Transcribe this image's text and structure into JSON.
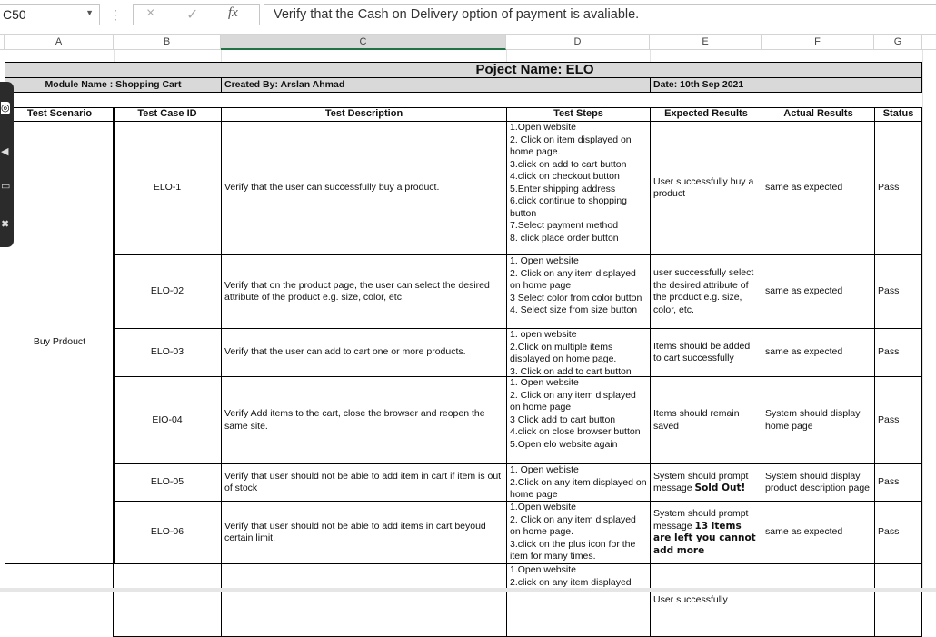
{
  "formula_bar": {
    "name_box": "C50",
    "cancel_icon": "×",
    "enter_icon": "✓",
    "fx_label": "fx",
    "formula": "Verify that the Cash on Delivery option of payment is avaliable."
  },
  "columns": [
    "A",
    "B",
    "C",
    "D",
    "E",
    "F",
    "G"
  ],
  "sheet": {
    "project_title": "Poject Name: ELO",
    "module": "Module Name : Shopping Cart",
    "created_by": "Created By: Arslan Ahmad",
    "date": "Date: 10th Sep 2021",
    "headers": [
      "Test Scenario",
      "Test Case ID",
      "Test Description",
      "Test Steps",
      "Expected Results",
      "Actual Results",
      "Status"
    ],
    "scenario": "Buy Prdouct",
    "rows": [
      {
        "id": "ELO-1",
        "desc": "Verify that the user can successfully buy a product.",
        "steps": "1.Open website\n2. Click on item displayed on home page.\n3.click on add to cart button\n4.click on checkout button\n5.Enter shipping address\n6.click continue to shopping button\n7.Select payment method\n8. click place order button",
        "expected": "User successfully buy a product",
        "expected_bold": "",
        "actual": "same as expected",
        "status": "Pass"
      },
      {
        "id": "ELO-02",
        "desc": "Verify that on the product page, the user can select the desired attribute of the product e.g. size, color, etc.",
        "steps": "1. Open website\n2. Click on any item displayed on home page\n3 Select color from color button\n4. Select size from size button",
        "expected": "user successfully select the desired attribute of the product e.g. size, color, etc.",
        "expected_bold": "",
        "actual": "same as expected",
        "status": "Pass"
      },
      {
        "id": "ELO-03",
        "desc": "Verify that the user can add to cart one or more products.",
        "steps": "1. open website\n2.Click on multiple items displayed on home page.\n3. Click on add to cart button",
        "expected": "Items should be added to cart successfully",
        "expected_bold": "",
        "actual": "same as expected",
        "status": "Pass"
      },
      {
        "id": "EIO-04",
        "desc": "Verify Add items to the cart, close the browser and reopen the same site.",
        "steps": "1. Open website\n2. Click on any item displayed on home page\n3 Click add to cart button\n4.click on close browser button\n5.Open elo website again",
        "expected": "Items should remain saved",
        "expected_bold": "",
        "actual": "System should display home page",
        "status": "Pass"
      },
      {
        "id": "ELO-05",
        "desc": "Verify that user should not be able to add item in cart if item is out of stock",
        "steps": "1. Open webiste\n2.Click on any item displayed on home page",
        "expected": "System should prompt message ",
        "expected_bold": "Sold Out!",
        "actual": "System should display product description page",
        "status": "Pass"
      },
      {
        "id": "ELO-06",
        "desc": "Verify that user should not be able to add items in cart beyoud certain limit.",
        "steps": "1.Open website\n2. Click on any item displayed on home page.\n3.click on the plus icon for the item for many times.",
        "expected": "System should prompt message ",
        "expected_bold": "13 items are left you cannot add more",
        "actual": "same as expected",
        "status": "Pass"
      },
      {
        "id": "",
        "desc": "",
        "steps": "1.Open website\n2.click on any item displayed",
        "expected": "User successfully",
        "expected_bold": "",
        "actual": "",
        "status": ""
      }
    ]
  }
}
